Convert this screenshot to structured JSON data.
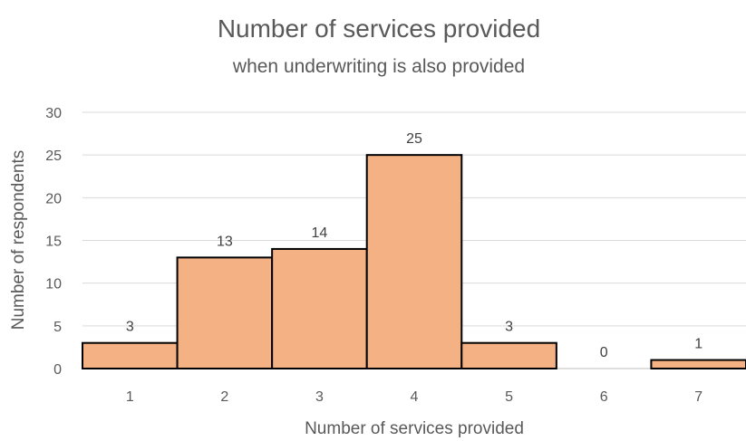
{
  "chart_data": {
    "type": "bar",
    "title": "Number of services provided",
    "subtitle": "when underwriting is also provided",
    "xlabel": "Number of services provided",
    "ylabel": "Number of respondents",
    "categories": [
      "1",
      "2",
      "3",
      "4",
      "5",
      "6",
      "7"
    ],
    "values": [
      3,
      13,
      14,
      25,
      3,
      0,
      1
    ],
    "data_labels": [
      "3",
      "13",
      "14",
      "25",
      "3",
      "0",
      "1"
    ],
    "ylim": [
      0,
      30
    ],
    "yticks": [
      "0",
      "5",
      "10",
      "15",
      "20",
      "25",
      "30"
    ],
    "grid": true,
    "legend": "none",
    "bar_color": "#F4B183",
    "bar_border_color": "#000000"
  }
}
